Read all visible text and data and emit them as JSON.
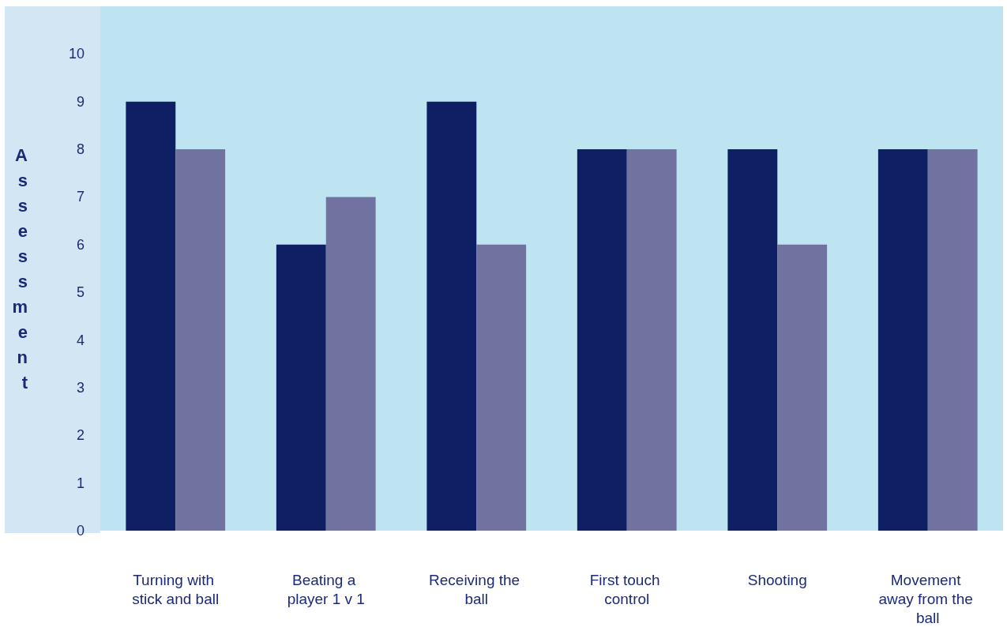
{
  "chart_data": {
    "type": "bar",
    "ylabel": "Assessment",
    "categories": [
      "Turning with stick and ball",
      "Beating a player 1 v 1",
      "Receiving the ball",
      "First touch control",
      "Shooting",
      "Movement away from the ball"
    ],
    "series": [
      {
        "color": "#0e2063",
        "values": [
          9,
          6,
          9,
          8,
          8,
          8
        ]
      },
      {
        "color": "#7073a0",
        "values": [
          8,
          7,
          6,
          8,
          6,
          8
        ]
      }
    ],
    "ylim": [
      0,
      11
    ],
    "yticks": [
      0,
      1,
      2,
      3,
      4,
      5,
      6,
      7,
      8,
      9,
      10
    ],
    "grid": false
  }
}
